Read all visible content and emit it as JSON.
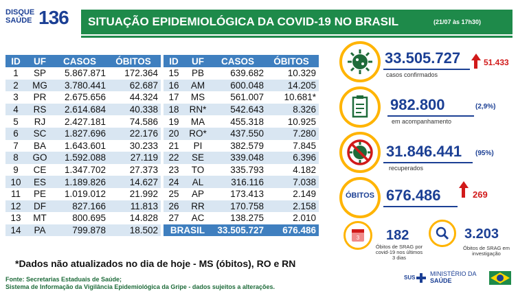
{
  "logo": {
    "line1": "DISQUE",
    "line2": "SAÚDE",
    "number": "136"
  },
  "header": {
    "title": "SITUAÇÃO EPIDEMIOLÓGICA DA COVID-19 NO BRASIL",
    "date": "(21/07 às 17h30)"
  },
  "table_headers": [
    "ID",
    "UF",
    "CASOS",
    "ÓBITOS"
  ],
  "left_rows": [
    {
      "id": "1",
      "uf": "SP",
      "casos": "5.867.871",
      "obitos": "172.364"
    },
    {
      "id": "2",
      "uf": "MG",
      "casos": "3.780.441",
      "obitos": "62.687"
    },
    {
      "id": "3",
      "uf": "PR",
      "casos": "2.675.656",
      "obitos": "44.324"
    },
    {
      "id": "4",
      "uf": "RS",
      "casos": "2.614.684",
      "obitos": "40.338"
    },
    {
      "id": "5",
      "uf": "RJ",
      "casos": "2.427.181",
      "obitos": "74.586"
    },
    {
      "id": "6",
      "uf": "SC",
      "casos": "1.827.696",
      "obitos": "22.176"
    },
    {
      "id": "7",
      "uf": "BA",
      "casos": "1.643.601",
      "obitos": "30.233"
    },
    {
      "id": "8",
      "uf": "GO",
      "casos": "1.592.088",
      "obitos": "27.119"
    },
    {
      "id": "9",
      "uf": "CE",
      "casos": "1.347.702",
      "obitos": "27.373"
    },
    {
      "id": "10",
      "uf": "ES",
      "casos": "1.189.826",
      "obitos": "14.627"
    },
    {
      "id": "11",
      "uf": "PE",
      "casos": "1.019.012",
      "obitos": "21.992"
    },
    {
      "id": "12",
      "uf": "DF",
      "casos": "827.166",
      "obitos": "11.813"
    },
    {
      "id": "13",
      "uf": "MT",
      "casos": "800.695",
      "obitos": "14.828"
    },
    {
      "id": "14",
      "uf": "PA",
      "casos": "799.878",
      "obitos": "18.502"
    }
  ],
  "right_rows": [
    {
      "id": "15",
      "uf": "PB",
      "casos": "639.682",
      "obitos": "10.329"
    },
    {
      "id": "16",
      "uf": "AM",
      "casos": "600.048",
      "obitos": "14.205"
    },
    {
      "id": "17",
      "uf": "MS",
      "casos": "561.007",
      "obitos": "10.681*"
    },
    {
      "id": "18",
      "uf": "RN*",
      "casos": "542.643",
      "obitos": "8.326"
    },
    {
      "id": "19",
      "uf": "MA",
      "casos": "455.318",
      "obitos": "10.925"
    },
    {
      "id": "20",
      "uf": "RO*",
      "casos": "437.550",
      "obitos": "7.280"
    },
    {
      "id": "21",
      "uf": "PI",
      "casos": "382.579",
      "obitos": "7.845"
    },
    {
      "id": "22",
      "uf": "SE",
      "casos": "339.048",
      "obitos": "6.396"
    },
    {
      "id": "23",
      "uf": "TO",
      "casos": "335.793",
      "obitos": "4.182"
    },
    {
      "id": "24",
      "uf": "AL",
      "casos": "316.116",
      "obitos": "7.038"
    },
    {
      "id": "25",
      "uf": "AP",
      "casos": "173.413",
      "obitos": "2.149"
    },
    {
      "id": "26",
      "uf": "RR",
      "casos": "170.758",
      "obitos": "2.158"
    },
    {
      "id": "27",
      "uf": "AC",
      "casos": "138.275",
      "obitos": "2.010"
    }
  ],
  "total": {
    "label": "BRASIL",
    "casos": "33.505.727",
    "obitos": "676.486"
  },
  "note": "*Dados não atualizados no dia de hoje - MS (óbitos), RO e RN",
  "sources": {
    "line1": "Fonte: Secretarias Estaduais de Saúde;",
    "line2": "Sistema de Informação da Vigilância Epidemiológica da Gripe - dados sujeitos a alterações."
  },
  "stats": {
    "confirmed": {
      "value": "33.505.727",
      "label": "casos confirmados",
      "increase": "51.433",
      "icon": "virus-icon"
    },
    "monitoring": {
      "value": "982.800",
      "label": "em acompanhamento",
      "pct": "(2,9%)",
      "icon": "clipboard-icon"
    },
    "recovered": {
      "value": "31.846.441",
      "label": "recuperados",
      "pct": "(95%)",
      "icon": "crossed-virus-icon"
    },
    "deaths": {
      "badge": "ÓBITOS",
      "value": "676.486",
      "increase": "269"
    },
    "srag": {
      "value": "182",
      "label_l1": "Óbitos de SRAG por",
      "label_l2": "covid-19 nos últimos",
      "label_l3": "3 dias",
      "icon": "calendar-icon"
    },
    "investigation": {
      "value": "3.203",
      "label_l1": "Óbitos de SRAG em",
      "label_l2": "investigação",
      "icon": "magnifier-icon"
    }
  },
  "footer": {
    "sus": "SUS",
    "ministry_l1": "MINISTÉRIO DA",
    "ministry_l2": "SAÚDE"
  },
  "colors": {
    "green": "#1e8a4a",
    "blue": "#1b3f94",
    "table_blue": "#3f7fbf",
    "stripe": "#d9e6f2",
    "yellow": "#ffb400",
    "red": "#d11a1a"
  }
}
